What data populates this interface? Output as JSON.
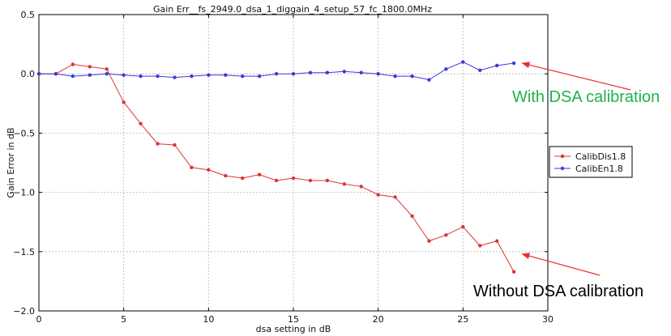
{
  "chart_data": {
    "type": "line",
    "title": "Gain Err__fs_2949.0_dsa_1_diggain_4_setup_57_fc_1800.0MHz",
    "xlabel": "dsa setting in dB",
    "ylabel": "Gain Error in dB",
    "xlim": [
      0,
      30
    ],
    "ylim": [
      -2.0,
      0.5
    ],
    "xticks": [
      0,
      5,
      10,
      15,
      20,
      25,
      30
    ],
    "yticks": [
      0.5,
      0.0,
      -0.5,
      -1.0,
      -1.5,
      -2.0
    ],
    "xtick_labels": [
      "0",
      "5",
      "10",
      "15",
      "20",
      "25",
      "30"
    ],
    "ytick_labels": [
      "0.5",
      "0.0",
      "−0.5",
      "−1.0",
      "−1.5",
      "−2.0"
    ],
    "grid": true,
    "legend": "right",
    "series": [
      {
        "name": "CalibDis1.8",
        "color": "#dd3333",
        "x": [
          0,
          1,
          2,
          3,
          4,
          5,
          6,
          7,
          8,
          9,
          10,
          11,
          12,
          13,
          14,
          15,
          16,
          17,
          18,
          19,
          20,
          21,
          22,
          23,
          24,
          25,
          26,
          27,
          28
        ],
        "y": [
          0.0,
          0.0,
          0.08,
          0.06,
          0.04,
          -0.24,
          -0.42,
          -0.59,
          -0.6,
          -0.79,
          -0.81,
          -0.86,
          -0.88,
          -0.85,
          -0.9,
          -0.88,
          -0.9,
          -0.9,
          -0.93,
          -0.95,
          -1.02,
          -1.04,
          -1.2,
          -1.41,
          -1.36,
          -1.29,
          -1.45,
          -1.41,
          -1.67
        ]
      },
      {
        "name": "CalibEn1.8",
        "color": "#3a3ad6",
        "x": [
          0,
          1,
          2,
          3,
          4,
          5,
          6,
          7,
          8,
          9,
          10,
          11,
          12,
          13,
          14,
          15,
          16,
          17,
          18,
          19,
          20,
          21,
          22,
          23,
          24,
          25,
          26,
          27,
          28
        ],
        "y": [
          0.0,
          0.0,
          -0.02,
          -0.01,
          0.0,
          -0.01,
          -0.02,
          -0.02,
          -0.03,
          -0.02,
          -0.01,
          -0.01,
          -0.02,
          -0.02,
          0.0,
          0.0,
          0.01,
          0.01,
          0.02,
          0.01,
          0.0,
          -0.02,
          -0.02,
          -0.05,
          0.04,
          0.1,
          0.03,
          0.07,
          0.09
        ]
      }
    ],
    "annotations": [
      {
        "text": "With DSA calibration",
        "color": "#22b14c",
        "point_x": 28.3,
        "point_y": 0.09
      },
      {
        "text": "Without DSA calibration",
        "color": "#000000",
        "point_x": 28.3,
        "point_y": -1.52
      }
    ],
    "arrow_color": "#e83030"
  }
}
